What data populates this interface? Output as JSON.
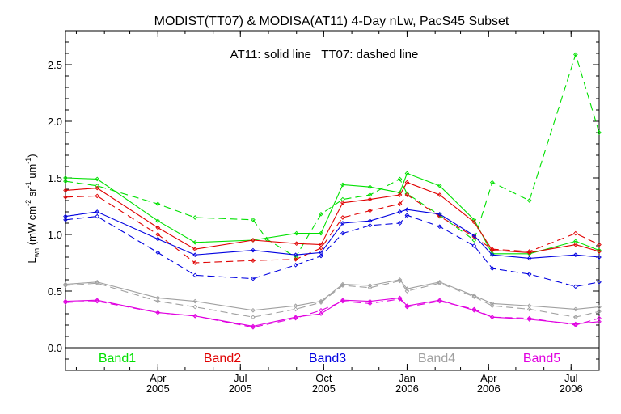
{
  "chart_data": {
    "type": "line",
    "title": "MODIST(TT07) & MODISA(AT11) 4-Day nLw, PacS45 Subset",
    "annotation": "AT11: solid line   TT07: dashed line",
    "ylabel": "L_wn (mW cm^-2 sr^-1 um^-1)",
    "ylabel_main": "L",
    "ylabel_sub": "wn",
    "ylabel_rest": " (mW cm",
    "ylabel_exp1": "-2",
    "ylabel_mid": " sr",
    "ylabel_exp2": "-1",
    "ylabel_mid2": " um",
    "ylabel_exp3": "-1",
    "ylabel_end": ")",
    "xlabel": "",
    "ylim": [
      -0.2,
      2.8
    ],
    "xlim": [
      "2004-12-20",
      "2006-08-01"
    ],
    "yticks": [
      "0.0",
      "0.5",
      "1.0",
      "1.5",
      "2.0",
      "2.5"
    ],
    "ytick_values": [
      0.0,
      0.5,
      1.0,
      1.5,
      2.0,
      2.5
    ],
    "xticks": [
      {
        "date": "2005-04-01",
        "month": "Apr",
        "year": "2005"
      },
      {
        "date": "2005-07-01",
        "month": "Jul",
        "year": "2005"
      },
      {
        "date": "2005-10-01",
        "month": "Oct",
        "year": "2005"
      },
      {
        "date": "2006-01-01",
        "month": "Jan",
        "year": "2006"
      },
      {
        "date": "2006-04-01",
        "month": "Apr",
        "year": "2006"
      },
      {
        "date": "2006-07-01",
        "month": "Jul",
        "year": "2006"
      }
    ],
    "legend_placement": "bottom",
    "grid": false,
    "series": [
      {
        "name": "Band1",
        "sensor": "AT11",
        "style": "solid",
        "color": "#00e000",
        "x": [
          "2004-12-20",
          "2005-01-24",
          "2005-04-01",
          "2005-05-12",
          "2005-07-15",
          "2005-09-01",
          "2005-09-28",
          "2005-10-22",
          "2005-11-21",
          "2005-12-24",
          "2006-01-01",
          "2006-02-06",
          "2006-03-16",
          "2006-04-05",
          "2006-05-16",
          "2006-07-06",
          "2006-08-01"
        ],
        "y": [
          1.5,
          1.49,
          1.12,
          0.93,
          0.95,
          1.01,
          1.01,
          1.44,
          1.42,
          1.37,
          1.54,
          1.43,
          1.13,
          0.83,
          0.83,
          0.94,
          0.86
        ]
      },
      {
        "name": "Band1",
        "sensor": "TT07",
        "style": "dashed",
        "color": "#00e000",
        "x": [
          "2004-12-20",
          "2005-01-24",
          "2005-04-01",
          "2005-05-12",
          "2005-07-15",
          "2005-07-30",
          "2005-08-31",
          "2005-09-28",
          "2005-10-22",
          "2005-11-21",
          "2005-12-24",
          "2006-01-01",
          "2006-02-06",
          "2006-03-16",
          "2006-04-05",
          "2006-05-16",
          "2006-07-06",
          "2006-08-01"
        ],
        "y": [
          1.47,
          1.43,
          1.27,
          1.15,
          1.13,
          0.96,
          0.8,
          1.18,
          1.31,
          1.35,
          1.49,
          1.36,
          1.17,
          0.95,
          1.46,
          1.3,
          2.59,
          1.9
        ]
      },
      {
        "name": "Band2",
        "sensor": "AT11",
        "style": "solid",
        "color": "#e00000",
        "x": [
          "2004-12-20",
          "2005-01-24",
          "2005-04-01",
          "2005-05-12",
          "2005-07-15",
          "2005-09-01",
          "2005-09-28",
          "2005-10-22",
          "2005-11-21",
          "2005-12-24",
          "2006-01-01",
          "2006-02-06",
          "2006-03-16",
          "2006-04-05",
          "2006-05-16",
          "2006-07-06",
          "2006-08-01"
        ],
        "y": [
          1.39,
          1.41,
          1.06,
          0.87,
          0.95,
          0.92,
          0.91,
          1.28,
          1.31,
          1.35,
          1.46,
          1.35,
          1.11,
          0.86,
          0.84,
          0.91,
          0.85
        ]
      },
      {
        "name": "Band2",
        "sensor": "TT07",
        "style": "dashed",
        "color": "#e00000",
        "x": [
          "2004-12-20",
          "2005-01-24",
          "2005-04-01",
          "2005-05-12",
          "2005-07-15",
          "2005-08-31",
          "2005-09-28",
          "2005-10-22",
          "2005-11-21",
          "2005-12-24",
          "2006-01-01",
          "2006-02-06",
          "2006-03-16",
          "2006-04-05",
          "2006-05-16",
          "2006-07-06",
          "2006-08-01"
        ],
        "y": [
          1.33,
          1.34,
          1.0,
          0.75,
          0.77,
          0.78,
          0.88,
          1.15,
          1.21,
          1.27,
          1.35,
          1.16,
          0.98,
          0.87,
          0.85,
          1.01,
          0.91
        ]
      },
      {
        "name": "Band3",
        "sensor": "AT11",
        "style": "solid",
        "color": "#0000e0",
        "x": [
          "2004-12-20",
          "2005-01-24",
          "2005-04-01",
          "2005-05-12",
          "2005-07-15",
          "2005-08-31",
          "2005-09-28",
          "2005-10-22",
          "2005-11-21",
          "2005-12-24",
          "2006-01-01",
          "2006-02-06",
          "2006-03-16",
          "2006-04-05",
          "2006-05-16",
          "2006-07-06",
          "2006-08-01"
        ],
        "y": [
          1.16,
          1.2,
          0.96,
          0.82,
          0.86,
          0.82,
          0.84,
          1.1,
          1.12,
          1.2,
          1.22,
          1.18,
          0.99,
          0.82,
          0.79,
          0.82,
          0.8
        ]
      },
      {
        "name": "Band3",
        "sensor": "TT07",
        "style": "dashed",
        "color": "#0000e0",
        "x": [
          "2004-12-20",
          "2005-01-24",
          "2005-04-01",
          "2005-05-12",
          "2005-07-15",
          "2005-08-31",
          "2005-09-28",
          "2005-10-22",
          "2005-11-21",
          "2005-12-24",
          "2006-01-01",
          "2006-02-06",
          "2006-03-16",
          "2006-04-05",
          "2006-05-16",
          "2006-07-06",
          "2006-08-01"
        ],
        "y": [
          1.13,
          1.16,
          0.84,
          0.64,
          0.61,
          0.73,
          0.81,
          1.01,
          1.08,
          1.1,
          1.17,
          1.07,
          0.9,
          0.7,
          0.65,
          0.54,
          0.58
        ]
      },
      {
        "name": "Band4",
        "sensor": "AT11",
        "style": "solid",
        "color": "#a0a0a0",
        "x": [
          "2004-12-20",
          "2005-01-24",
          "2005-04-01",
          "2005-05-12",
          "2005-07-15",
          "2005-08-31",
          "2005-09-28",
          "2005-10-22",
          "2005-11-21",
          "2005-12-24",
          "2006-01-01",
          "2006-02-06",
          "2006-03-16",
          "2006-04-05",
          "2006-05-16",
          "2006-07-06",
          "2006-08-01"
        ],
        "y": [
          0.56,
          0.58,
          0.44,
          0.41,
          0.33,
          0.37,
          0.41,
          0.56,
          0.55,
          0.6,
          0.52,
          0.58,
          0.46,
          0.39,
          0.37,
          0.34,
          0.36
        ]
      },
      {
        "name": "Band4",
        "sensor": "TT07",
        "style": "dashed",
        "color": "#a0a0a0",
        "x": [
          "2004-12-20",
          "2005-01-24",
          "2005-04-01",
          "2005-05-12",
          "2005-07-15",
          "2005-08-31",
          "2005-09-28",
          "2005-10-22",
          "2005-11-21",
          "2005-12-24",
          "2006-01-01",
          "2006-02-06",
          "2006-03-16",
          "2006-04-05",
          "2006-05-16",
          "2006-07-06",
          "2006-08-01"
        ],
        "y": [
          0.55,
          0.57,
          0.41,
          0.36,
          0.27,
          0.34,
          0.4,
          0.55,
          0.53,
          0.59,
          0.5,
          0.57,
          0.45,
          0.37,
          0.34,
          0.27,
          0.32
        ]
      },
      {
        "name": "Band5",
        "sensor": "AT11",
        "style": "solid",
        "color": "#e000e0",
        "x": [
          "2004-12-20",
          "2005-01-24",
          "2005-04-01",
          "2005-05-12",
          "2005-07-15",
          "2005-08-31",
          "2005-09-28",
          "2005-10-22",
          "2005-11-21",
          "2005-12-24",
          "2006-01-01",
          "2006-02-06",
          "2006-03-16",
          "2006-04-05",
          "2006-05-16",
          "2006-07-06",
          "2006-08-01"
        ],
        "y": [
          0.41,
          0.42,
          0.31,
          0.28,
          0.19,
          0.27,
          0.3,
          0.42,
          0.41,
          0.44,
          0.37,
          0.42,
          0.33,
          0.27,
          0.25,
          0.21,
          0.23
        ]
      },
      {
        "name": "Band5",
        "sensor": "TT07",
        "style": "dashed",
        "color": "#e000e0",
        "x": [
          "2004-12-20",
          "2005-01-24",
          "2005-04-01",
          "2005-05-12",
          "2005-07-15",
          "2005-08-31",
          "2005-09-28",
          "2005-10-22",
          "2005-11-21",
          "2005-12-24",
          "2006-01-01",
          "2006-02-06",
          "2006-03-16",
          "2006-04-05",
          "2006-05-16",
          "2006-07-06",
          "2006-08-01"
        ],
        "y": [
          0.4,
          0.41,
          0.31,
          0.28,
          0.18,
          0.26,
          0.33,
          0.41,
          0.39,
          0.43,
          0.36,
          0.41,
          0.34,
          0.27,
          0.26,
          0.2,
          0.26
        ]
      }
    ],
    "legend": [
      {
        "label": "Band1",
        "color": "#00e000"
      },
      {
        "label": "Band2",
        "color": "#e00000"
      },
      {
        "label": "Band3",
        "color": "#0000e0"
      },
      {
        "label": "Band4",
        "color": "#a0a0a0"
      },
      {
        "label": "Band5",
        "color": "#e000e0"
      }
    ]
  }
}
